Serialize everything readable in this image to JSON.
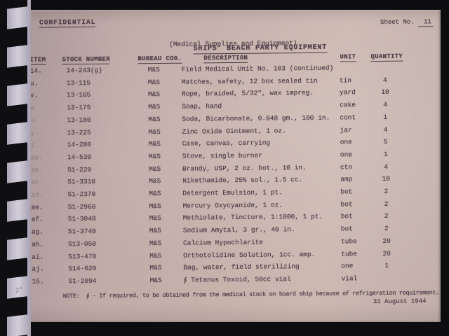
{
  "page": {
    "classification": "CONFIDENTIAL",
    "sheet_label": "Sheet No.",
    "sheet_number": "11",
    "title": "SHIPS' BEACH PARTY EQUIPMENT",
    "subtitle": "(Medical Supplies and Equipment)",
    "note": "NOTE:  ∮ - If required, to be obtained from the medical stock on board ship because of refrigeration requirement.",
    "date": "31 August 1944",
    "margin_mark": "2″"
  },
  "table": {
    "headers": [
      "ITEM",
      "STOCK NUMBER",
      "BUREAU COG.",
      "DESCRIPTION",
      "UNIT",
      "QUANTITY"
    ],
    "rows": [
      {
        "item": "14.",
        "stock": "14-243(g)",
        "bureau": "M&S",
        "description": "Field Medical Unit No. 103 (continued)",
        "unit": "",
        "quantity": "",
        "faint_item": false
      },
      {
        "item": "u.",
        "stock": "13-115",
        "bureau": "M&S",
        "description": "Matches, safety, 12 box sealed tin",
        "unit": "tin",
        "quantity": "4",
        "faint_item": false
      },
      {
        "item": "v.",
        "stock": "13-165",
        "bureau": "M&S",
        "description": "Rope, braided, 5/32\", wax impreg.",
        "unit": "yard",
        "quantity": "10",
        "faint_item": false
      },
      {
        "item": "w.",
        "stock": "13-175",
        "bureau": "M&S",
        "description": "Soap, hand",
        "unit": "cake",
        "quantity": "4",
        "faint_item": true
      },
      {
        "item": "x.",
        "stock": "13-180",
        "bureau": "M&S",
        "description": "Soda, Bicarbonate, 0.648 gm., 100 in.",
        "unit": "cont",
        "quantity": "1",
        "faint_item": true
      },
      {
        "item": "y.",
        "stock": "13-225",
        "bureau": "M&S",
        "description": "Zinc Oxide Ointment, 1 oz.",
        "unit": "jar",
        "quantity": "4",
        "faint_item": true
      },
      {
        "item": "z.",
        "stock": "14-280",
        "bureau": "M&S",
        "description": "Case, canvas, carrying",
        "unit": "one",
        "quantity": "5",
        "faint_item": true
      },
      {
        "item": "aa.",
        "stock": "14-530",
        "bureau": "M&S",
        "description": "Stove, single burner",
        "unit": "one",
        "quantity": "1",
        "faint_item": true
      },
      {
        "item": "ab.",
        "stock": "S1-220",
        "bureau": "M&S",
        "description": "Brandy, USP, 2 oz. bot., 10 in.",
        "unit": "ctn",
        "quantity": "4",
        "faint_item": true
      },
      {
        "item": "ac.",
        "stock": "S1-3310",
        "bureau": "M&S",
        "description": "Nikethamide, 25% sol., 1.5 cc.",
        "unit": "amp",
        "quantity": "10",
        "faint_item": true
      },
      {
        "item": "ad.",
        "stock": "S1-2370",
        "bureau": "M&S",
        "description": "Detergent Emulsion, 1 pt.",
        "unit": "bot",
        "quantity": "2",
        "faint_item": true
      },
      {
        "item": "ae.",
        "stock": "S1-2960",
        "bureau": "M&S",
        "description": "Mercury Oxycyanide, 1 oz.",
        "unit": "bot",
        "quantity": "2",
        "faint_item": false
      },
      {
        "item": "af.",
        "stock": "S1-3040",
        "bureau": "M&S",
        "description": "Methiolate, Tincture, 1:1000, 1 pt.",
        "unit": "bot",
        "quantity": "2",
        "faint_item": false
      },
      {
        "item": "ag.",
        "stock": "S1-3740",
        "bureau": "M&S",
        "description": "Sodium Amytal, 3 gr., 40 in.",
        "unit": "bot",
        "quantity": "2",
        "faint_item": false
      },
      {
        "item": "ah.",
        "stock": "S13-050",
        "bureau": "M&S",
        "description": "Calcium Hypochlarite",
        "unit": "tube",
        "quantity": "20",
        "faint_item": false
      },
      {
        "item": "ai.",
        "stock": "S13-470",
        "bureau": "M&S",
        "description": "Orthotolidine Solution, 1cc. amp.",
        "unit": "tube",
        "quantity": "20",
        "faint_item": false
      },
      {
        "item": "aj.",
        "stock": "S14-020",
        "bureau": "M&S",
        "description": "Bag, water, field sterilizing",
        "unit": "one",
        "quantity": "1",
        "faint_item": false
      },
      {
        "item": "15.",
        "stock": "S1-2094",
        "bureau": "M&S",
        "description": "∮ Tetanus Toxoid, 50cc vial",
        "unit": "vial",
        "quantity": "",
        "faint_item": false
      }
    ]
  },
  "colors": {
    "paper": "#c6b1ab",
    "ink": "#4c3a46",
    "border": "#0d0c0e",
    "binding": "#c7c2d0"
  }
}
